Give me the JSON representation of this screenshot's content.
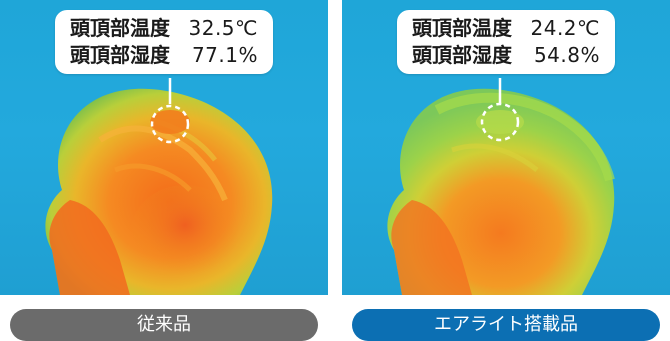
{
  "left": {
    "temp_label": "頭頂部温度",
    "temp_value": "32.5℃",
    "humidity_label": "頭頂部湿度",
    "humidity_value": "77.1%",
    "caption": "従来品"
  },
  "right": {
    "temp_label": "頭頂部温度",
    "temp_value": "24.2℃",
    "humidity_label": "頭頂部湿度",
    "humidity_value": "54.8%",
    "caption": "エアライト搭載品"
  },
  "colors": {
    "background_blue": "#1fa6d8",
    "pill_gray": "#6b6b6b",
    "pill_blue": "#0c6fb3"
  }
}
